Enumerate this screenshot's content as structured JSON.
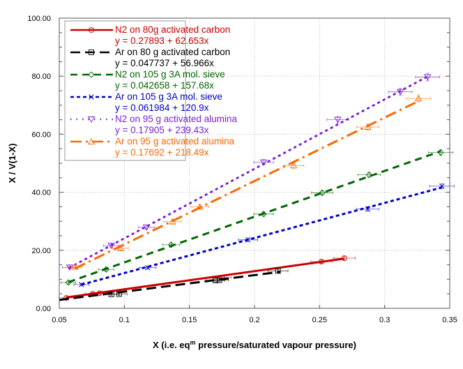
{
  "chart_data": {
    "type": "scatter",
    "xlabel": "X (i.e. eq<sup>m</sup> pressure/saturated vapour pressure)",
    "xlabel_parts": [
      "X (i.e. eq",
      "m",
      " pressure/saturated vapour pressure)"
    ],
    "ylabel": "X / V(1-X)",
    "xlim": [
      0.05,
      0.35
    ],
    "ylim": [
      0,
      100
    ],
    "xticks": [
      0.05,
      0.1,
      0.15,
      0.2,
      0.25,
      0.3,
      0.35
    ],
    "xtick_labels": [
      "0.05",
      "0.1",
      "0.15",
      "0.2",
      "0.25",
      "0.3",
      "0.35"
    ],
    "yticks": [
      0,
      20,
      40,
      60,
      80,
      100
    ],
    "ytick_labels": [
      "0.00",
      "20.00",
      "40.00",
      "60.00",
      "80.00",
      "100.00"
    ],
    "grid": true,
    "error_bars": true,
    "legend_placement": "top-left",
    "series": [
      {
        "name": "N2 on 80g activated carbon",
        "fit": "y = 0.27893 + 62.653x",
        "intercept": 0.27893,
        "slope": 62.653,
        "color": "#cc0000",
        "marker": "circle",
        "dash": "none",
        "x": [
          0.0554,
          0.0757,
          0.081,
          0.175,
          0.2514,
          0.269
        ],
        "y": [
          3.6,
          5.0,
          5.2,
          10.6,
          16.1,
          17.3
        ]
      },
      {
        "name": "Ar on 80 g activated carbon",
        "fit": "y = 0.047737 + 56.966x",
        "intercept": 0.047737,
        "slope": 56.966,
        "color": "#000000",
        "marker": "square",
        "dash": "long",
        "x": [
          0.09,
          0.096,
          0.17,
          0.173,
          0.218
        ],
        "y": [
          4.8,
          4.9,
          9.6,
          9.7,
          12.9
        ]
      },
      {
        "name": "N2 on 105 g 3A mol. sieve",
        "fit": "y = 0.042658 + 157.68x",
        "intercept": 0.042658,
        "slope": 157.68,
        "color": "#006600",
        "marker": "diamond",
        "dash": "medium",
        "x": [
          0.057,
          0.086,
          0.136,
          0.207,
          0.252,
          0.288,
          0.343
        ],
        "y": [
          8.9,
          13.4,
          21.9,
          32.5,
          39.8,
          46.0,
          53.7
        ]
      },
      {
        "name": "Ar on 105 g 3A mol. sieve",
        "fit": "y = 0.061984 + 120.9x",
        "intercept": 0.061984,
        "slope": 120.9,
        "color": "#0000cc",
        "marker": "x",
        "dash": "short",
        "x": [
          0.067,
          0.118,
          0.195,
          0.287,
          0.344
        ],
        "y": [
          8.2,
          14.0,
          23.6,
          34.2,
          42.1
        ]
      },
      {
        "name": "N2 on 95 g activated alumina",
        "fit": "y = 0.17905 + 239.43x",
        "intercept": 0.17905,
        "slope": 239.43,
        "color": "#7a1fd6",
        "marker": "triangle-down",
        "dash": "dotted",
        "x": [
          0.058,
          0.09,
          0.117,
          0.207,
          0.264,
          0.312,
          0.333
        ],
        "y": [
          14.1,
          21.6,
          27.9,
          50.3,
          65.0,
          74.6,
          79.7
        ]
      },
      {
        "name": "Ar on 95 g activated alumina",
        "fit": "y = 0.17692 + 218.49x",
        "intercept": 0.17692,
        "slope": 218.49,
        "color": "#ff6600",
        "marker": "triangle-up",
        "dash": "dashdot",
        "x": [
          0.062,
          0.097,
          0.137,
          0.158,
          0.23,
          0.287,
          0.326
        ],
        "y": [
          14.3,
          20.7,
          29.9,
          35.0,
          49.2,
          62.5,
          72.3
        ]
      }
    ]
  }
}
